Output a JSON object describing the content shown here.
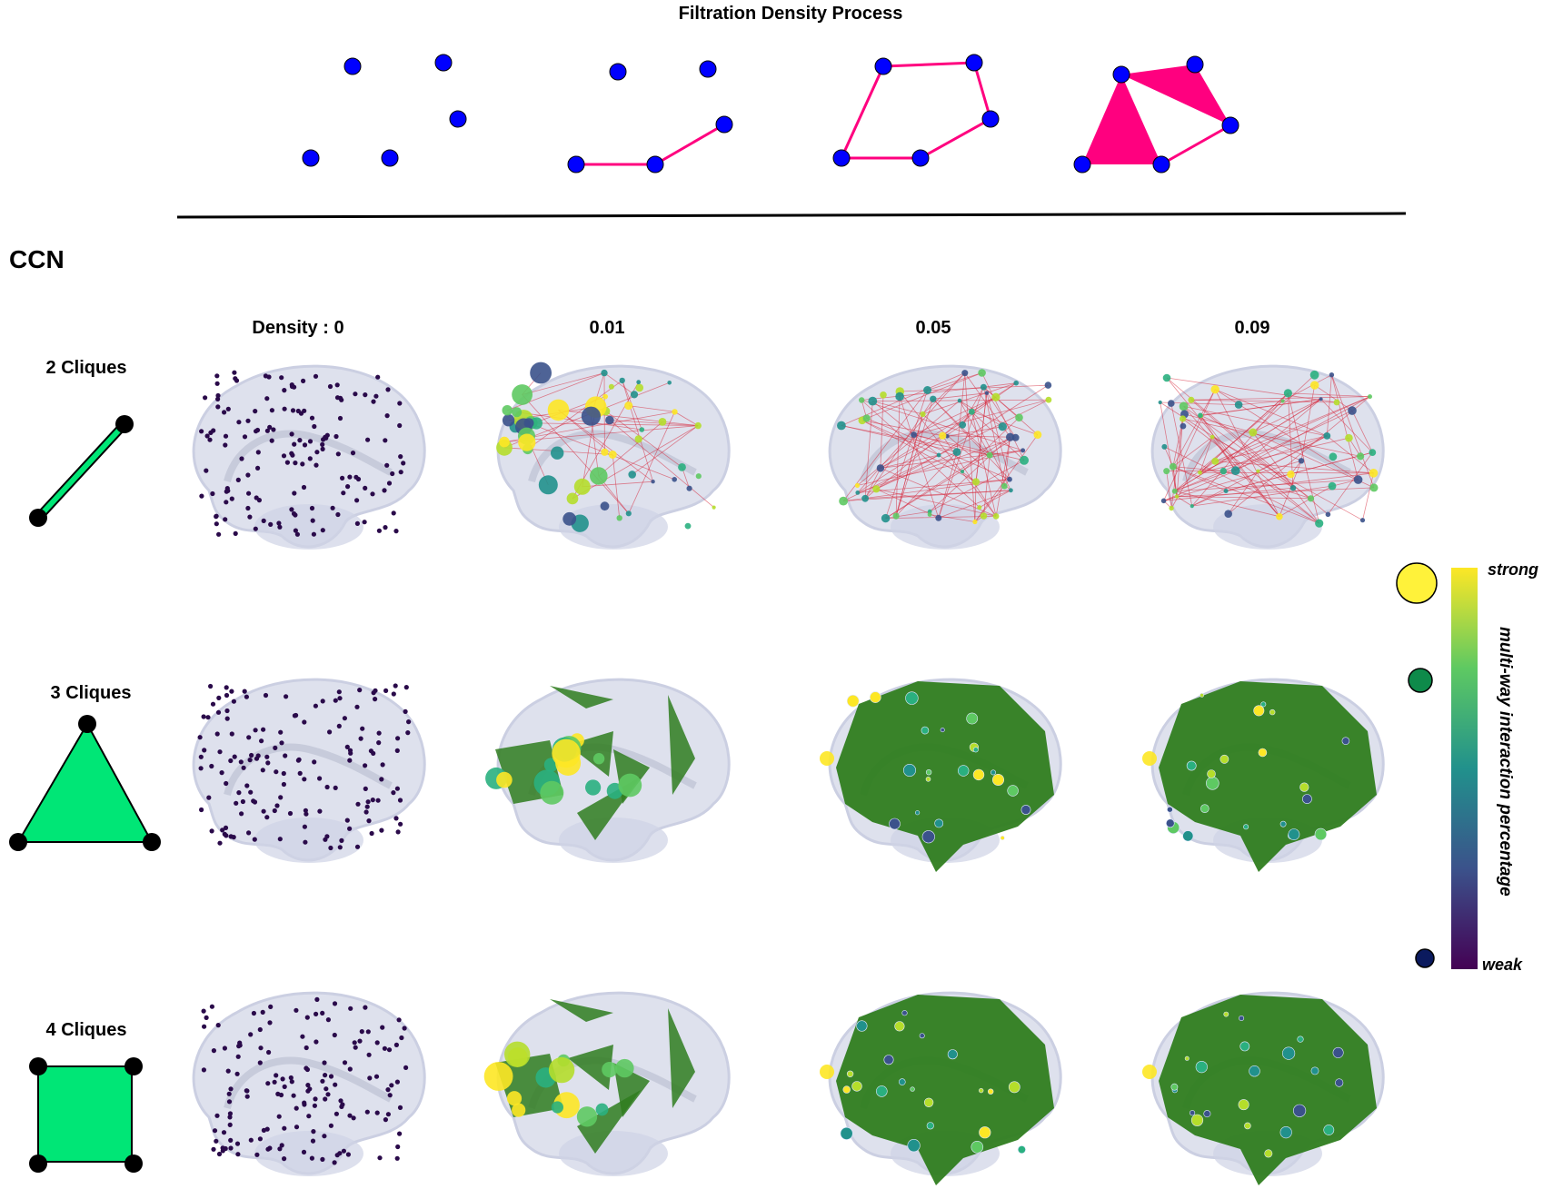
{
  "header": {
    "title": "Filtration Density Process",
    "section_label": "CCN"
  },
  "columns": [
    "Density : 0",
    "0.01",
    "0.05",
    "0.09"
  ],
  "rows": [
    {
      "label": "2 Cliques",
      "shape": "edge"
    },
    {
      "label": "3 Cliques",
      "shape": "triangle"
    },
    {
      "label": "4 Cliques",
      "shape": "square"
    }
  ],
  "colorbar": {
    "title": "multi-way interaction percentage",
    "high_label": "strong",
    "low_label": "weak",
    "gradient": [
      "#440154",
      "#3b528b",
      "#21918c",
      "#5ec962",
      "#fde725"
    ]
  },
  "colors": {
    "filtration_node": "#0000ff",
    "filtration_edge": "#ff007f",
    "clique_fill": "#00e676",
    "brain_overlay": "#2f7d1f",
    "edge_red": "#d6283c",
    "node_weak": "#3a0a5a"
  }
}
